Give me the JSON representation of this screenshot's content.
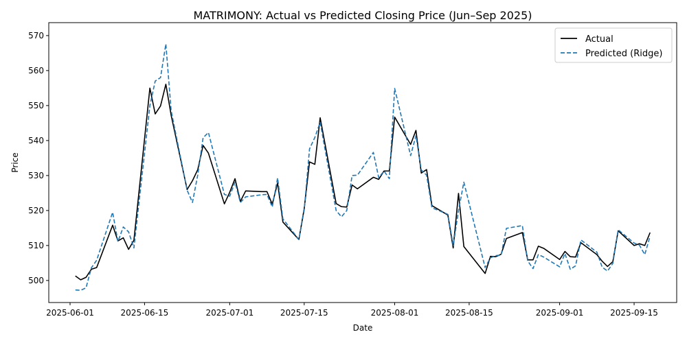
{
  "chart_data": {
    "type": "line",
    "title": "MATRIMONY: Actual vs Predicted Closing Price (Jun–Sep 2025)",
    "xlabel": "Date",
    "ylabel": "Price",
    "x_ticks": [
      "2025-06-01",
      "2025-06-15",
      "2025-07-01",
      "2025-07-15",
      "2025-08-01",
      "2025-08-15",
      "2025-09-01",
      "2025-09-15"
    ],
    "y_ticks": [
      500,
      510,
      520,
      530,
      540,
      550,
      560,
      570
    ],
    "ylim": [
      493.7,
      573.7
    ],
    "xlim": [
      "2025-05-28",
      "2025-09-23"
    ],
    "grid": false,
    "legend_position": "top-right",
    "x": [
      "2025-06-02",
      "2025-06-03",
      "2025-06-04",
      "2025-06-05",
      "2025-06-06",
      "2025-06-09",
      "2025-06-10",
      "2025-06-11",
      "2025-06-12",
      "2025-06-13",
      "2025-06-16",
      "2025-06-17",
      "2025-06-18",
      "2025-06-19",
      "2025-06-20",
      "2025-06-23",
      "2025-06-24",
      "2025-06-25",
      "2025-06-26",
      "2025-06-27",
      "2025-06-30",
      "2025-07-01",
      "2025-07-02",
      "2025-07-03",
      "2025-07-04",
      "2025-07-07",
      "2025-07-08",
      "2025-07-09",
      "2025-07-10",
      "2025-07-11",
      "2025-07-14",
      "2025-07-15",
      "2025-07-16",
      "2025-07-17",
      "2025-07-18",
      "2025-07-21",
      "2025-07-22",
      "2025-07-23",
      "2025-07-24",
      "2025-07-25",
      "2025-07-28",
      "2025-07-29",
      "2025-07-30",
      "2025-07-31",
      "2025-08-01",
      "2025-08-04",
      "2025-08-05",
      "2025-08-06",
      "2025-08-07",
      "2025-08-08",
      "2025-08-11",
      "2025-08-12",
      "2025-08-13",
      "2025-08-14",
      "2025-08-18",
      "2025-08-19",
      "2025-08-20",
      "2025-08-21",
      "2025-08-22",
      "2025-08-25",
      "2025-08-26",
      "2025-08-27",
      "2025-08-28",
      "2025-08-29",
      "2025-09-01",
      "2025-09-02",
      "2025-09-03",
      "2025-09-04",
      "2025-09-05",
      "2025-09-08",
      "2025-09-09",
      "2025-09-10",
      "2025-09-11",
      "2025-09-12",
      "2025-09-15",
      "2025-09-16",
      "2025-09-17",
      "2025-09-18"
    ],
    "series": [
      {
        "name": "Actual",
        "color": "#000000",
        "style": "solid",
        "values": [
          501.3,
          500.2,
          500.9,
          503.2,
          503.7,
          515.8,
          511.3,
          512.2,
          508.9,
          511.5,
          555.0,
          547.6,
          549.9,
          556.1,
          547.2,
          526.0,
          528.5,
          531.7,
          538.6,
          536.4,
          521.9,
          525.2,
          529.1,
          522.6,
          525.6,
          525.4,
          525.4,
          521.8,
          527.9,
          516.7,
          511.7,
          520.5,
          533.9,
          533.2,
          546.5,
          522.0,
          521.1,
          521.0,
          527.3,
          526.2,
          529.5,
          528.9,
          531.3,
          531.3,
          546.7,
          538.9,
          542.9,
          530.7,
          531.7,
          521.4,
          518.7,
          509.3,
          524.9,
          509.7,
          502.0,
          506.9,
          506.8,
          507.5,
          512.0,
          513.7,
          505.9,
          505.9,
          509.8,
          509.2,
          506.0,
          508.3,
          506.8,
          506.7,
          510.8,
          507.4,
          505.5,
          504.0,
          505.4,
          514.2,
          510.0,
          510.5,
          510.0,
          513.7
        ]
      },
      {
        "name": "Predicted (Ridge)",
        "color": "#1f77b4",
        "style": "dashed",
        "values": [
          497.3,
          497.2,
          497.9,
          503.6,
          505.8,
          519.5,
          511.1,
          515.3,
          513.9,
          509.3,
          550.0,
          557.0,
          558.0,
          567.6,
          548.5,
          525.8,
          522.3,
          530.2,
          540.8,
          542.3,
          524.6,
          524.1,
          528.1,
          522.3,
          523.9,
          524.5,
          524.6,
          521.0,
          529.3,
          517.6,
          511.7,
          520.1,
          537.6,
          540.9,
          545.2,
          520.0,
          518.2,
          520.0,
          530.0,
          530.1,
          536.6,
          529.4,
          531.3,
          529.1,
          554.9,
          535.7,
          541.4,
          531.6,
          530.1,
          520.8,
          518.9,
          510.0,
          520.0,
          528.1,
          503.7,
          506.5,
          507.1,
          507.3,
          514.9,
          515.7,
          505.6,
          503.4,
          507.4,
          506.7,
          503.9,
          507.7,
          503.2,
          504.2,
          511.6,
          508.1,
          503.8,
          502.7,
          504.9,
          514.5,
          510.7,
          510.1,
          507.4,
          512.7
        ]
      }
    ]
  }
}
